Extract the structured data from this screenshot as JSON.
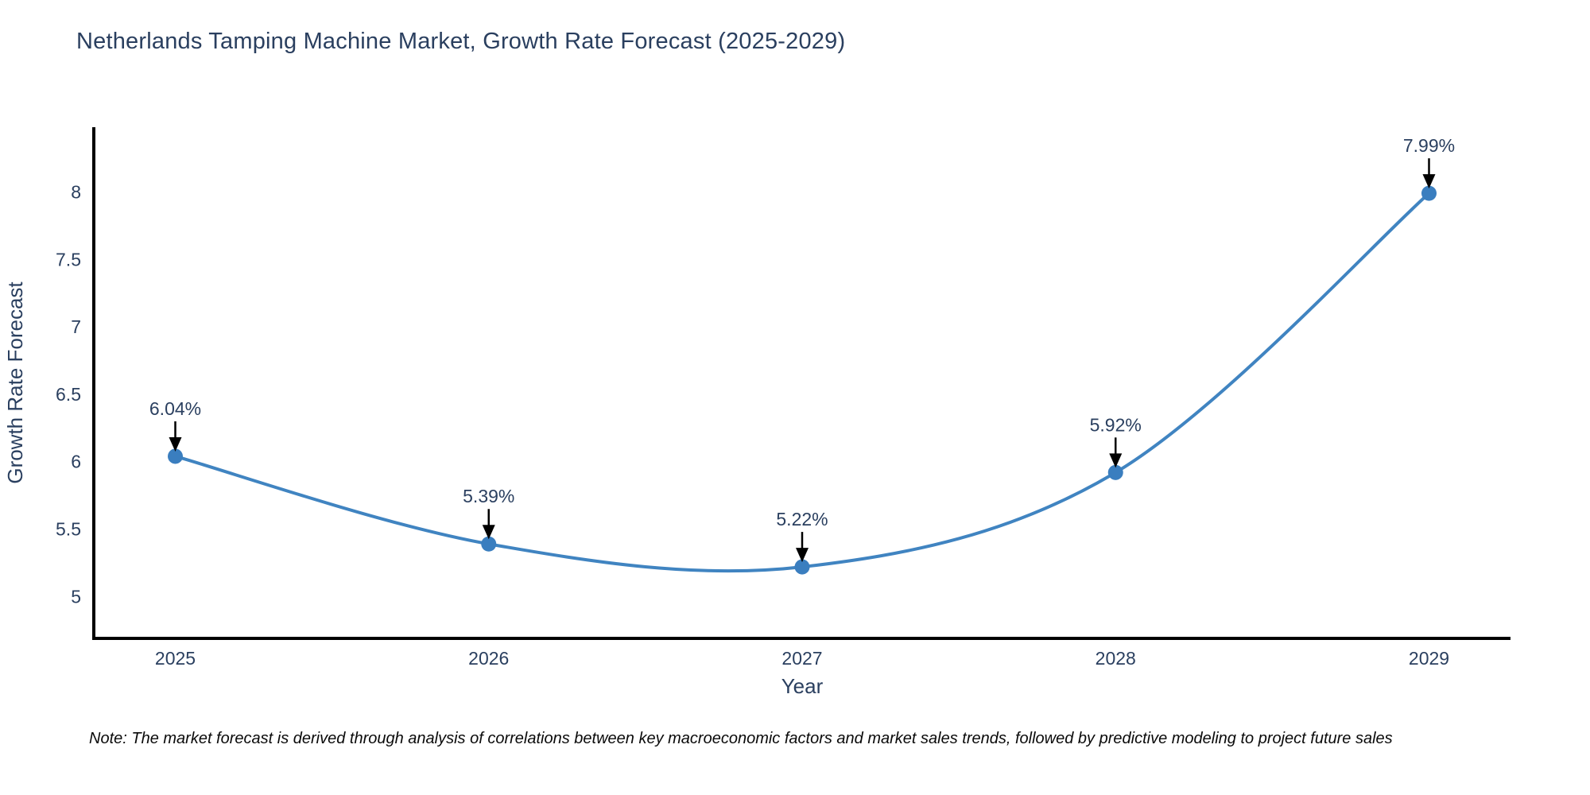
{
  "chart": {
    "title": "Netherlands Tamping Machine Market, Growth Rate Forecast (2025-2029)",
    "note": "Note: The market forecast is derived through analysis of correlations between key macroeconomic factors and market sales trends, followed by predictive modeling to project future sales"
  },
  "chart_data": {
    "type": "line",
    "title": "Netherlands Tamping Machine Market, Growth Rate Forecast (2025-2029)",
    "xlabel": "Year",
    "ylabel": "Growth Rate Forecast",
    "x": [
      2025,
      2026,
      2027,
      2028,
      2029
    ],
    "values": [
      6.04,
      5.39,
      5.22,
      5.92,
      7.99
    ],
    "data_labels": [
      "6.04%",
      "5.39%",
      "5.22%",
      "5.92%",
      "7.99%"
    ],
    "x_ticks": [
      "2025",
      "2026",
      "2027",
      "2028",
      "2029"
    ],
    "y_ticks": [
      "5",
      "5.5",
      "6",
      "6.5",
      "7",
      "7.5",
      "8"
    ],
    "y_tick_values": [
      5,
      5.5,
      6,
      6.5,
      7,
      7.5,
      8
    ],
    "xlim": [
      2024.74,
      2029.26
    ],
    "ylim": [
      4.69,
      8.48
    ],
    "line_shape": "spline",
    "grid": false,
    "legend": "none",
    "colors": {
      "line": "#4084c1",
      "marker": "#3a7ebf",
      "axis": "#000000",
      "text": "#2a3f5f",
      "arrow": "#000000"
    }
  }
}
